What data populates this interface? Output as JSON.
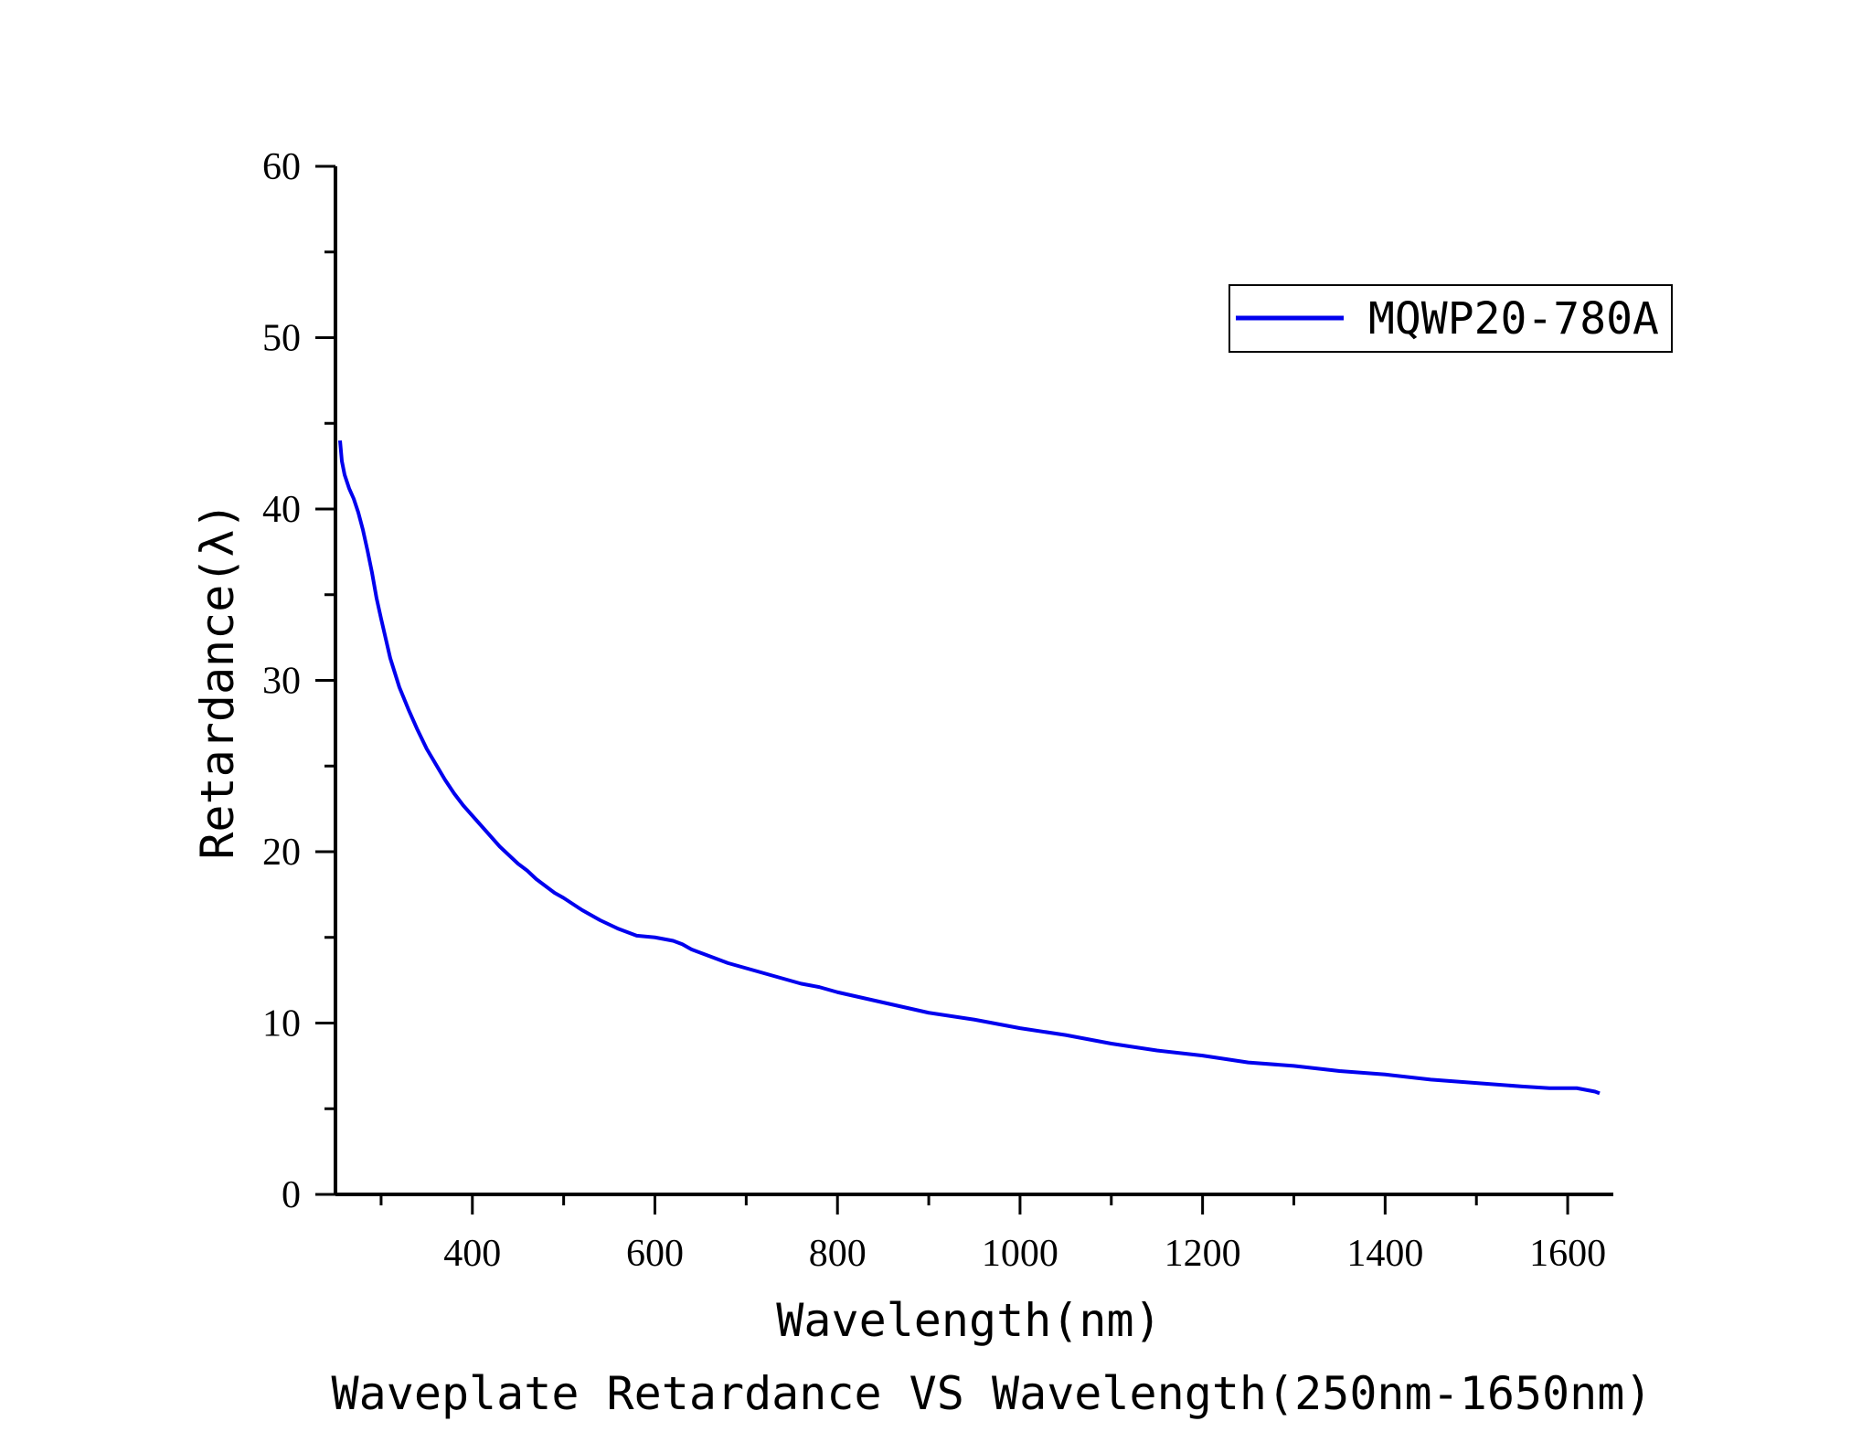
{
  "chart_data": {
    "type": "line",
    "title": "Waveplate Retardance VS Wavelength(250nm-1650nm)",
    "xlabel": "Wavelength(nm)",
    "ylabel": "Retardance(λ)",
    "xlim": [
      250,
      1650
    ],
    "ylim": [
      0,
      60
    ],
    "x_ticks": [
      400,
      600,
      800,
      1000,
      1200,
      1400,
      1600
    ],
    "x_tick_labels": [
      "400",
      "600",
      "800",
      "1000",
      "1200",
      "1400",
      "1600"
    ],
    "y_ticks": [
      0,
      10,
      20,
      30,
      40,
      50,
      60
    ],
    "y_tick_labels": [
      "0",
      "10",
      "20",
      "30",
      "40",
      "50",
      "60"
    ],
    "grid": false,
    "legend_position": "top-right",
    "series": [
      {
        "name": "MQWP20-780A",
        "color": "#0000ee",
        "x": [
          255,
          257,
          260,
          265,
          270,
          275,
          280,
          285,
          290,
          295,
          300,
          310,
          320,
          330,
          340,
          350,
          360,
          370,
          380,
          390,
          400,
          410,
          420,
          430,
          440,
          450,
          460,
          470,
          480,
          490,
          500,
          520,
          540,
          560,
          580,
          600,
          620,
          630,
          640,
          655,
          665,
          680,
          700,
          720,
          740,
          760,
          780,
          800,
          850,
          900,
          950,
          1000,
          1050,
          1100,
          1150,
          1200,
          1250,
          1300,
          1350,
          1400,
          1450,
          1500,
          1550,
          1580,
          1600,
          1610,
          1620,
          1630,
          1635
        ],
        "values": [
          44.0,
          42.8,
          42.0,
          41.2,
          40.6,
          39.8,
          38.8,
          37.6,
          36.3,
          34.8,
          33.6,
          31.3,
          29.6,
          28.3,
          27.1,
          26.0,
          25.1,
          24.2,
          23.4,
          22.7,
          22.1,
          21.5,
          20.9,
          20.3,
          19.8,
          19.3,
          18.9,
          18.4,
          18.0,
          17.6,
          17.3,
          16.6,
          16.0,
          15.5,
          15.1,
          15.0,
          14.8,
          14.6,
          14.3,
          14.0,
          13.8,
          13.5,
          13.2,
          12.9,
          12.6,
          12.3,
          12.1,
          11.8,
          11.2,
          10.6,
          10.2,
          9.7,
          9.3,
          8.8,
          8.4,
          8.1,
          7.7,
          7.5,
          7.2,
          7.0,
          6.7,
          6.5,
          6.3,
          6.2,
          6.2,
          6.2,
          6.1,
          6.0,
          5.9
        ]
      }
    ]
  }
}
